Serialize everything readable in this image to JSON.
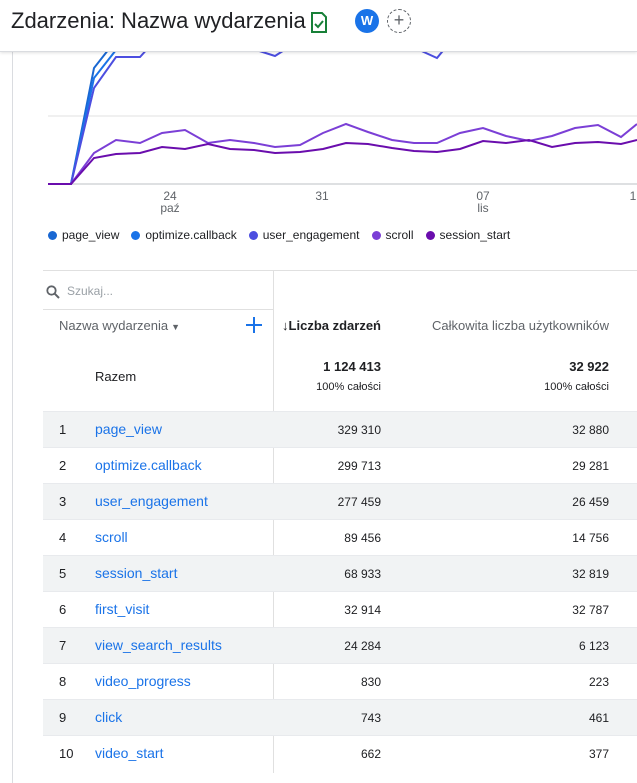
{
  "header": {
    "title": "Zdarzenia: Nazwa wydarzenia",
    "avatar_letter": "W",
    "add_comparison": "+"
  },
  "chart_data": {
    "type": "line",
    "x_ticks": [
      {
        "day": "24",
        "month": "paź"
      },
      {
        "day": "31",
        "month": ""
      },
      {
        "day": "07",
        "month": "lis"
      },
      {
        "day": "1",
        "month": ""
      }
    ],
    "series": [
      {
        "name": "page_view",
        "color": "#1967d2"
      },
      {
        "name": "optimize.callback",
        "color": "#1a73e8"
      },
      {
        "name": "user_engagement",
        "color": "#4c4ee0"
      },
      {
        "name": "scroll",
        "color": "#7b3fd6"
      },
      {
        "name": "session_start",
        "color": "#6a0dad"
      }
    ]
  },
  "search": {
    "placeholder": "Szukaj..."
  },
  "table": {
    "dimension_header": "Nazwa wydarzenia",
    "metric1_header": "↓Liczba zdarzeń",
    "metric2_header": "Całkowita liczba użytkowników",
    "total": {
      "label": "Razem",
      "v1": "1 124 413",
      "p1": "100% całości",
      "v2": "32 922",
      "p2": "100% całości"
    },
    "rows": [
      {
        "idx": "1",
        "name": "page_view",
        "v1": "329 310",
        "v2": "32 880"
      },
      {
        "idx": "2",
        "name": "optimize.callback",
        "v1": "299 713",
        "v2": "29 281"
      },
      {
        "idx": "3",
        "name": "user_engagement",
        "v1": "277 459",
        "v2": "26 459"
      },
      {
        "idx": "4",
        "name": "scroll",
        "v1": "89 456",
        "v2": "14 756"
      },
      {
        "idx": "5",
        "name": "session_start",
        "v1": "68 933",
        "v2": "32 819"
      },
      {
        "idx": "6",
        "name": "first_visit",
        "v1": "32 914",
        "v2": "32 787"
      },
      {
        "idx": "7",
        "name": "view_search_results",
        "v1": "24 284",
        "v2": "6 123"
      },
      {
        "idx": "8",
        "name": "video_progress",
        "v1": "830",
        "v2": "223"
      },
      {
        "idx": "9",
        "name": "click",
        "v1": "743",
        "v2": "461"
      },
      {
        "idx": "10",
        "name": "video_start",
        "v1": "662",
        "v2": "377"
      }
    ]
  }
}
